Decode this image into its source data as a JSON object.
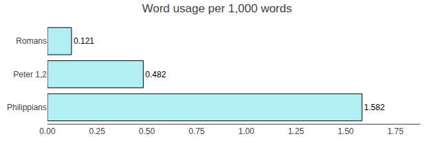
{
  "chart_data": {
    "type": "bar",
    "title": "Word usage per 1,000 words",
    "orientation": "horizontal",
    "categories": [
      "Romans",
      "Peter 1,2",
      "Philippians"
    ],
    "values": [
      0.121,
      0.482,
      1.582
    ],
    "color": "#b2eff5",
    "xlim": [
      0,
      1.875
    ],
    "xticks": [
      {
        "value": 0.0,
        "label": "0.00"
      },
      0.25,
      {
        "value": 0.5,
        "label": "0.50"
      },
      0.75,
      {
        "value": 1.0,
        "label": "1.00"
      },
      1.25,
      {
        "value": 1.5,
        "label": "1.50"
      },
      1.75
    ],
    "data_labels": true,
    "grid": false
  }
}
